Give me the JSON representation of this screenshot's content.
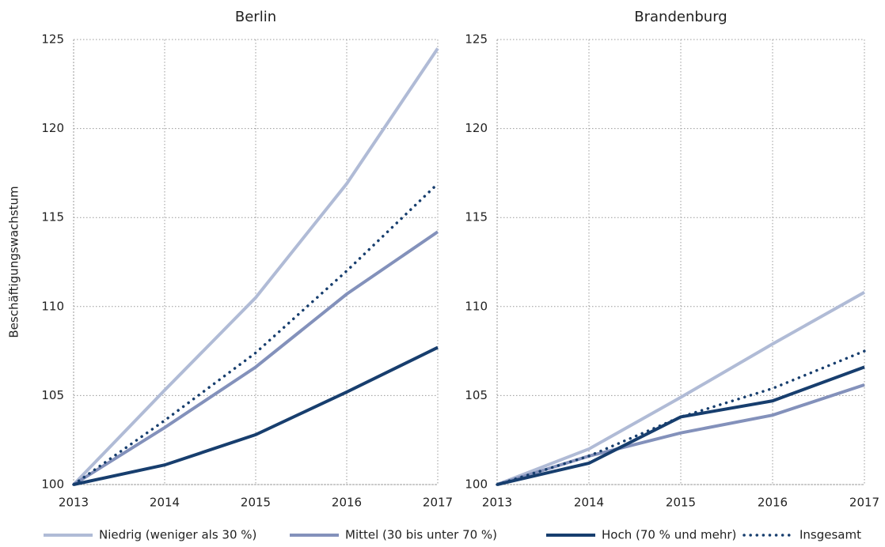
{
  "chart_data": [
    {
      "type": "line",
      "title": "Berlin",
      "y_label": "Beschäftigungswachstum",
      "x": [
        2013,
        2014,
        2015,
        2016,
        2017
      ],
      "xlim": [
        2013,
        2017
      ],
      "xticks": [
        2013,
        2014,
        2015,
        2016,
        2017
      ],
      "ylim": [
        100,
        125
      ],
      "yticks": [
        100,
        105,
        110,
        115,
        120,
        125
      ],
      "grid": true,
      "series": [
        {
          "name": "Niedrig (weniger als 30 %)",
          "color": "#b0bbd6",
          "style": "solid",
          "values": [
            100,
            105.3,
            110.5,
            116.9,
            124.5
          ]
        },
        {
          "name": "Mittel (30 bis unter 70 %)",
          "color": "#8391bb",
          "style": "solid",
          "values": [
            100,
            103.2,
            106.6,
            110.7,
            114.2
          ]
        },
        {
          "name": "Hoch (70 % und mehr)",
          "color": "#173e6e",
          "style": "solid",
          "values": [
            100,
            101.1,
            102.8,
            105.2,
            107.7
          ]
        },
        {
          "name": "Insgesamt",
          "color": "#173e6e",
          "style": "dotted",
          "values": [
            100,
            103.6,
            107.4,
            112.0,
            116.9
          ]
        }
      ]
    },
    {
      "type": "line",
      "title": "Brandenburg",
      "x": [
        2013,
        2014,
        2015,
        2016,
        2017
      ],
      "xlim": [
        2013,
        2017
      ],
      "xticks": [
        2013,
        2014,
        2015,
        2016,
        2017
      ],
      "ylim": [
        100,
        125
      ],
      "yticks": [
        100,
        105,
        110,
        115,
        120,
        125
      ],
      "grid": true,
      "series": [
        {
          "color": "#b0bbd6",
          "style": "solid",
          "values": [
            100,
            102.0,
            104.9,
            107.9,
            110.8
          ]
        },
        {
          "color": "#8391bb",
          "style": "solid",
          "values": [
            100,
            101.6,
            102.9,
            103.9,
            105.6
          ]
        },
        {
          "color": "#173e6e",
          "style": "solid",
          "values": [
            100,
            101.2,
            103.8,
            104.7,
            106.6
          ]
        },
        {
          "color": "#173e6e",
          "style": "dotted",
          "values": [
            100,
            101.6,
            103.8,
            105.4,
            107.5
          ]
        }
      ]
    }
  ]
}
